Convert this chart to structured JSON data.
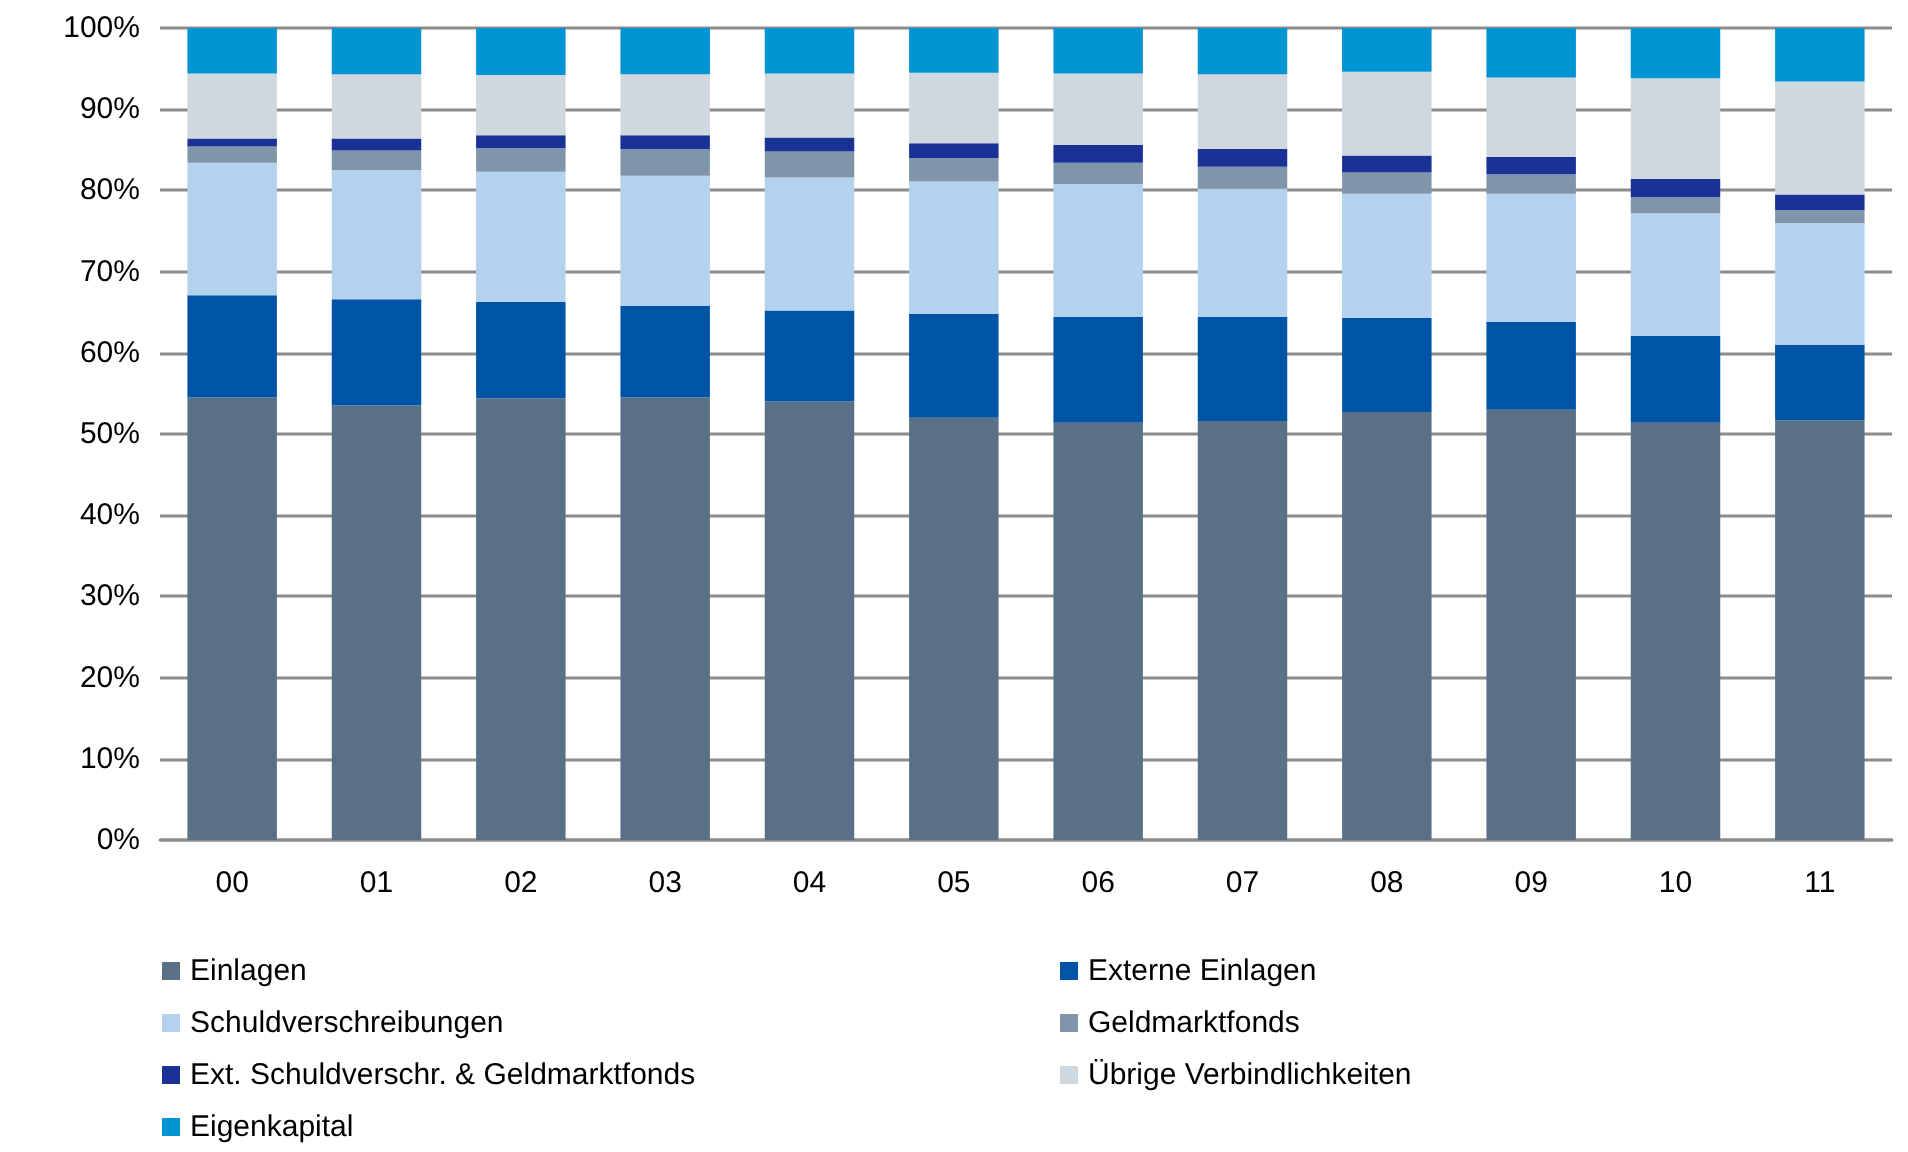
{
  "chart_data": {
    "type": "bar",
    "stacked": true,
    "categories": [
      "00",
      "01",
      "02",
      "03",
      "04",
      "05",
      "06",
      "07",
      "08",
      "09",
      "10",
      "11"
    ],
    "series": [
      {
        "name": "Einlagen",
        "color": "#5a7087",
        "values": [
          54.5,
          53.5,
          54.4,
          54.5,
          54.0,
          52.0,
          51.4,
          51.6,
          52.7,
          53.0,
          51.4,
          51.7
        ]
      },
      {
        "name": "Externe Einlagen",
        "color": "#0054a6",
        "values": [
          12.6,
          13.1,
          11.9,
          11.3,
          11.2,
          12.8,
          13.0,
          12.8,
          11.6,
          10.8,
          10.7,
          9.3
        ]
      },
      {
        "name": "Schuldverschreibungen",
        "color": "#b4d1ee",
        "values": [
          16.3,
          15.9,
          16.0,
          16.0,
          16.4,
          16.3,
          16.4,
          15.8,
          15.3,
          15.8,
          15.1,
          15.0
        ]
      },
      {
        "name": "Geldmarktfonds",
        "color": "#8195aa",
        "values": [
          2.0,
          2.4,
          2.9,
          3.3,
          3.2,
          2.9,
          2.6,
          2.7,
          2.6,
          2.4,
          2.0,
          1.6
        ]
      },
      {
        "name": "Ext. Schuldverschr. & Geldmarktfonds",
        "color": "#1a3296",
        "values": [
          1.0,
          1.5,
          1.6,
          1.7,
          1.7,
          1.8,
          2.2,
          2.2,
          2.1,
          2.1,
          2.2,
          1.9
        ]
      },
      {
        "name": "Übrige Verbindlichkeiten",
        "color": "#cfd7df",
        "values": [
          8.0,
          7.9,
          7.4,
          7.5,
          7.9,
          8.7,
          8.8,
          9.2,
          10.3,
          9.8,
          12.4,
          13.9
        ]
      },
      {
        "name": "Eigenkapital",
        "color": "#0094d2",
        "values": [
          5.6,
          5.7,
          5.8,
          5.7,
          5.6,
          5.5,
          5.6,
          5.7,
          5.4,
          6.1,
          6.2,
          6.6
        ]
      }
    ],
    "ylim": [
      0,
      100
    ],
    "yticks": [
      {
        "value": 0,
        "label": "0%"
      },
      {
        "value": 10,
        "label": "10%"
      },
      {
        "value": 20,
        "label": "20%"
      },
      {
        "value": 30,
        "label": "30%"
      },
      {
        "value": 40,
        "label": "40%"
      },
      {
        "value": 50,
        "label": "50%"
      },
      {
        "value": 60,
        "label": "60%"
      },
      {
        "value": 70,
        "label": "70%"
      },
      {
        "value": 80,
        "label": "80%"
      },
      {
        "value": 90,
        "label": "90%"
      },
      {
        "value": 100,
        "label": "100%"
      }
    ],
    "grid": "y",
    "legend": "bottom"
  }
}
